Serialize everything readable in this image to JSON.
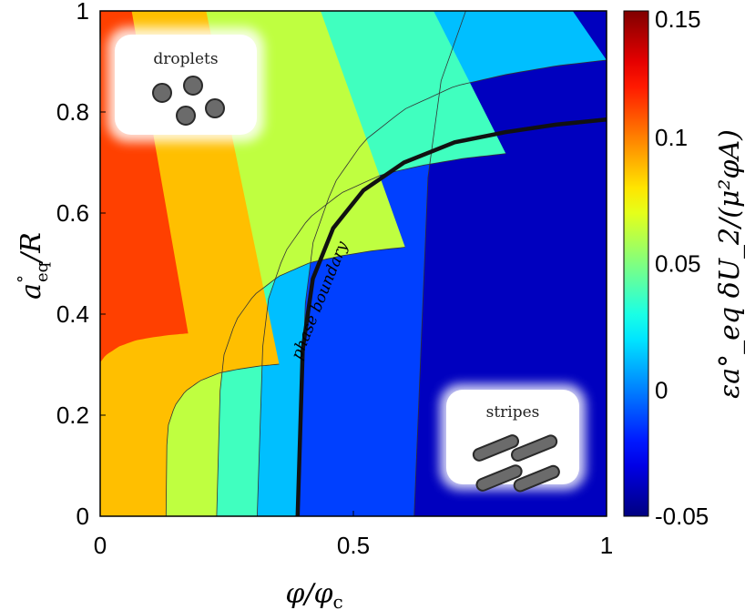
{
  "chart_data": {
    "type": "heatmap",
    "subtype": "filled-contour",
    "xlabel": "φ/φ_c",
    "ylabel": "a°_eq/R",
    "xlim": [
      0,
      1
    ],
    "ylim": [
      0,
      1
    ],
    "x_ticks": [
      "0",
      "0.5",
      "1"
    ],
    "y_ticks": [
      "0",
      "0.2",
      "0.4",
      "0.6",
      "0.8",
      "1"
    ],
    "colorbar": {
      "label": "εa°_eq δU_2/(μ²φA)",
      "range": [
        -0.05,
        0.15
      ],
      "ticks": [
        "0.15",
        "0.1",
        "0.05",
        "0",
        "-0.05"
      ],
      "colormap": "jet"
    },
    "contour_levels": [
      -0.025,
      0,
      0.025,
      0.05,
      0.075,
      0.1,
      0.125
    ],
    "contour_crossings_at_y0": [
      {
        "x": 0.13,
        "level": 0.075
      },
      {
        "x": 0.23,
        "level": 0.05
      },
      {
        "x": 0.31,
        "level": 0.025
      },
      {
        "x": 0.39,
        "level": 0
      },
      {
        "x": 0.62,
        "level": -0.025
      }
    ],
    "phase_boundary": {
      "level": 0,
      "x": [
        0.39,
        0.4,
        0.42,
        0.46,
        0.52,
        0.6,
        0.7,
        0.8,
        0.9,
        1.0
      ],
      "y": [
        0.0,
        0.33,
        0.47,
        0.57,
        0.645,
        0.7,
        0.74,
        0.76,
        0.775,
        0.785
      ]
    },
    "annotations": [
      {
        "text": "phase boundary",
        "near": "phase boundary curve"
      },
      {
        "text": "droplets",
        "region": "top-left"
      },
      {
        "text": "stripes",
        "region": "bottom-right"
      }
    ],
    "grid": false
  },
  "labels": {
    "x_title": "φ/φ",
    "x_sub": "c",
    "y_title_a": "a",
    "y_title_sup": "°",
    "y_title_sub": "eq",
    "y_title_rest": "/R",
    "cb_title": "εa°_eq δU_2/(μ²φA)",
    "phase_boundary": "phase boundary",
    "droplets": "droplets",
    "stripes": "stripes"
  },
  "colors": {
    "phase_boundary": "#111111",
    "inset_bg": "#ffffff",
    "glyph": "#6b6b6b"
  }
}
